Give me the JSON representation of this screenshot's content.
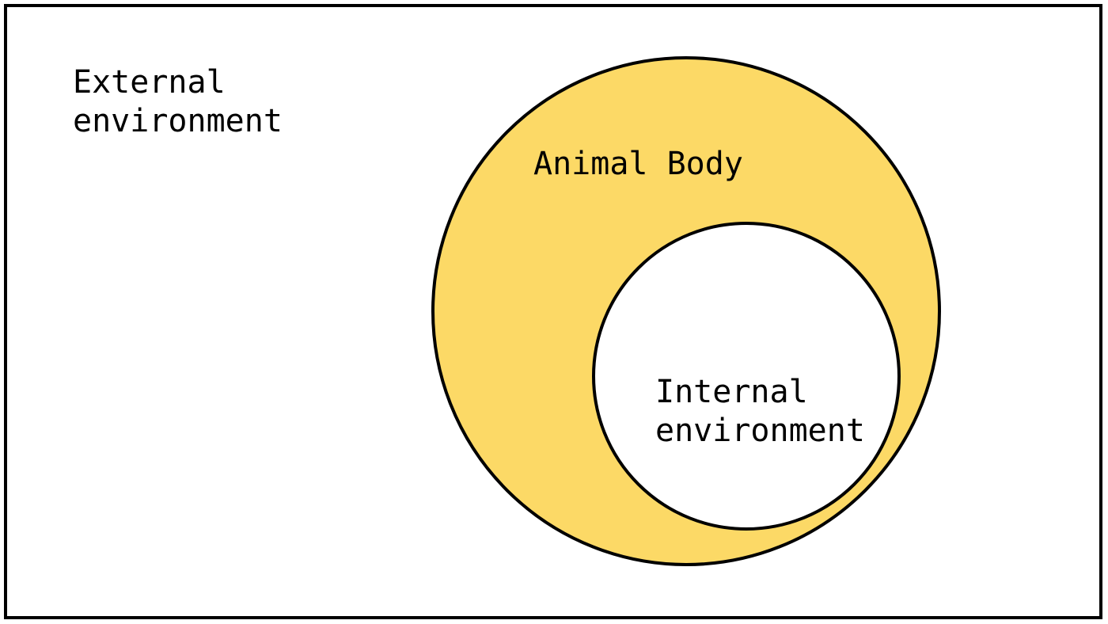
{
  "colors": {
    "background": "#ffffff",
    "border": "#000000",
    "animal_body_fill": "#fcd966",
    "internal_fill": "#ffffff"
  },
  "labels": {
    "external_line1": "External",
    "external_line2": "environment",
    "animal_body": "Animal Body",
    "internal_line1": "Internal",
    "internal_line2": "environment"
  }
}
